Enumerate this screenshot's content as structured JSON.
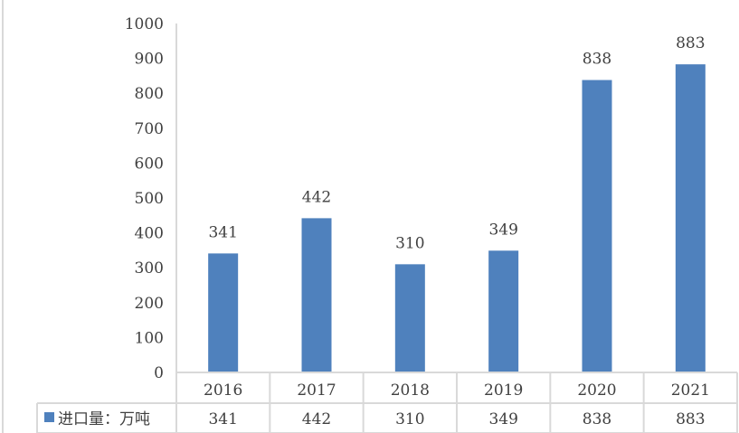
{
  "chart_data": {
    "type": "bar",
    "categories": [
      "2016",
      "2017",
      "2018",
      "2019",
      "2020",
      "2021"
    ],
    "series": [
      {
        "name": "进口量：万吨",
        "values": [
          341,
          442,
          310,
          349,
          838,
          883
        ]
      }
    ],
    "title": "",
    "xlabel": "",
    "ylabel": "",
    "ylim": [
      0,
      1000
    ],
    "yticks": [
      0,
      100,
      200,
      300,
      400,
      500,
      600,
      700,
      800,
      900,
      1000
    ],
    "grid": false,
    "legend": "data-table-left",
    "data_table": true,
    "colors": {
      "bar": "#4f81bd",
      "table_border": "#d9d9d9",
      "text": "#404040"
    }
  }
}
